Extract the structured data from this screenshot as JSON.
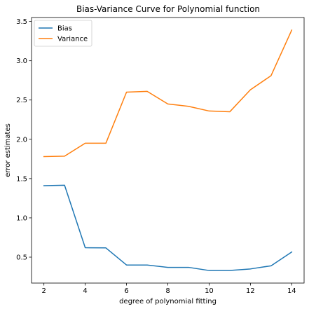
{
  "chart_data": {
    "type": "line",
    "title": "Bias-Variance Curve for Polynomial function",
    "xlabel": "degree of polynomial fitting",
    "ylabel": "error estimates",
    "x": [
      2,
      3,
      4,
      5,
      6,
      7,
      8,
      9,
      10,
      11,
      12,
      13,
      14
    ],
    "series": [
      {
        "name": "Bias",
        "color": "#1f77b4",
        "values": [
          1.41,
          1.415,
          0.62,
          0.618,
          0.4,
          0.4,
          0.37,
          0.37,
          0.33,
          0.33,
          0.35,
          0.39,
          0.565
        ]
      },
      {
        "name": "Variance",
        "color": "#ff7f0e",
        "values": [
          1.78,
          1.785,
          1.95,
          1.95,
          2.6,
          2.61,
          2.45,
          2.42,
          2.36,
          2.35,
          2.63,
          2.81,
          3.39
        ]
      }
    ],
    "xlim": [
      1.4,
      14.6
    ],
    "ylim": [
      0.17,
      3.55
    ],
    "xticks": [
      2,
      4,
      6,
      8,
      10,
      12,
      14
    ],
    "yticks": [
      0.5,
      1.0,
      1.5,
      2.0,
      2.5,
      3.0,
      3.5
    ],
    "xtick_labels": [
      "2",
      "4",
      "6",
      "8",
      "10",
      "12",
      "14"
    ],
    "ytick_labels": [
      "0.5",
      "1.0",
      "1.5",
      "2.0",
      "2.5",
      "3.0",
      "3.5"
    ],
    "grid": false,
    "legend_position": "top-left"
  }
}
